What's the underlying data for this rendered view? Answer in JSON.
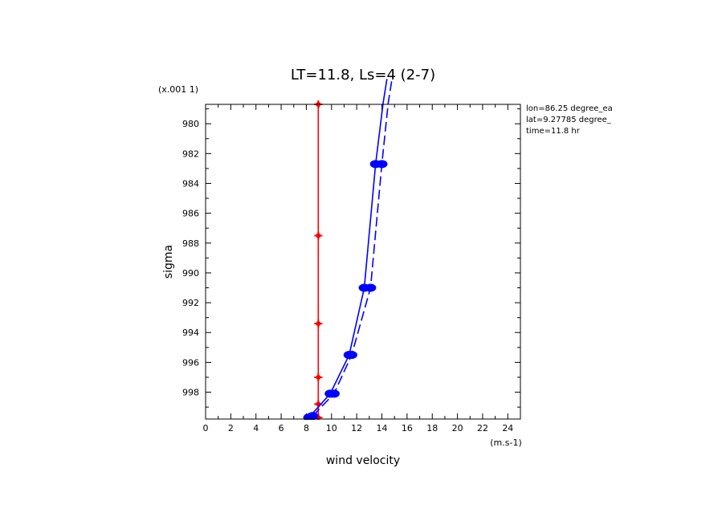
{
  "chart_data": {
    "type": "line",
    "title": "LT=11.8, Ls=4 (2-7)",
    "xlabel": "wind velocity",
    "ylabel": "sigma",
    "x_unit_label": "(m.s-1)",
    "y_unit_label": "(x.001 1)",
    "xlim": [
      0,
      25
    ],
    "ylim": [
      999.8,
      978.7
    ],
    "x_ticks": [
      0,
      2,
      4,
      6,
      8,
      10,
      12,
      14,
      16,
      18,
      20,
      22,
      24
    ],
    "y_ticks": [
      980,
      982,
      984,
      986,
      988,
      990,
      992,
      994,
      996,
      998
    ],
    "annotations": [
      "lon=86.25 degree_ea",
      "lat=9.27785 degree_",
      "time=11.8 hr"
    ],
    "series": [
      {
        "color": "#ff0000",
        "style": "solid",
        "marker": "plus",
        "points": [
          [
            8.95,
            978.7
          ],
          [
            8.95,
            987.5
          ],
          [
            8.95,
            993.4
          ],
          [
            8.95,
            997.0
          ],
          [
            8.95,
            998.8
          ],
          [
            8.95,
            999.7
          ]
        ]
      },
      {
        "color": "#0000ff",
        "style": "solid",
        "marker": "dot",
        "points": [
          [
            8.2,
            999.7
          ],
          [
            9.9,
            998.1
          ],
          [
            11.4,
            995.5
          ],
          [
            12.6,
            991.0
          ],
          [
            13.5,
            982.7
          ],
          [
            14.1,
            978.6
          ],
          [
            14.4,
            977.0
          ]
        ]
      },
      {
        "color": "#0000ff",
        "style": "dashed",
        "marker": "dot",
        "points": [
          [
            8.5,
            999.6
          ],
          [
            10.2,
            998.1
          ],
          [
            11.6,
            995.5
          ],
          [
            13.1,
            991.0
          ],
          [
            14.0,
            982.7
          ],
          [
            14.5,
            978.6
          ],
          [
            14.8,
            977.0
          ]
        ]
      }
    ]
  }
}
